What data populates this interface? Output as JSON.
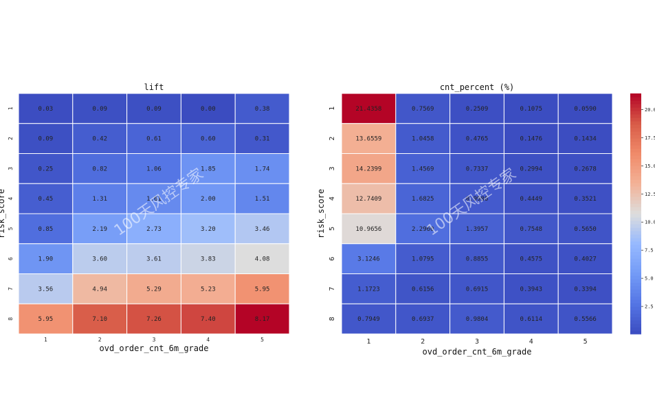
{
  "chart_data": [
    {
      "type": "heatmap",
      "title": "lift",
      "xlabel": "ovd_order_cnt_6m_grade",
      "ylabel": "risk_score",
      "x_categories": [
        "1",
        "2",
        "3",
        "4",
        "5"
      ],
      "y_categories": [
        "1",
        "2",
        "3",
        "4",
        "5",
        "6",
        "7",
        "8"
      ],
      "cell_labels": [
        [
          "0.03",
          "0.09",
          "0.09",
          "0.00",
          "0.38"
        ],
        [
          "0.09",
          "0.42",
          "0.61",
          "0.60",
          "0.31"
        ],
        [
          "0.25",
          "0.82",
          "1.06",
          "1.85",
          "1.74"
        ],
        [
          "0.45",
          "1.31",
          "1.61",
          "2.00",
          "1.51"
        ],
        [
          "0.85",
          "2.19",
          "2.73",
          "3.20",
          "3.46"
        ],
        [
          "1.90",
          "3.60",
          "3.61",
          "3.83",
          "4.08"
        ],
        [
          "3.56",
          "4.94",
          "5.29",
          "5.23",
          "5.95"
        ],
        [
          "5.95",
          "7.10",
          "7.26",
          "7.40",
          "8.17"
        ]
      ],
      "values": [
        [
          0.03,
          0.09,
          0.09,
          0.0,
          0.38
        ],
        [
          0.09,
          0.42,
          0.61,
          0.6,
          0.31
        ],
        [
          0.25,
          0.82,
          1.06,
          1.85,
          1.74
        ],
        [
          0.45,
          1.31,
          1.61,
          2.0,
          1.51
        ],
        [
          0.85,
          2.19,
          2.73,
          3.2,
          3.46
        ],
        [
          1.9,
          3.6,
          3.61,
          3.83,
          4.08
        ],
        [
          3.56,
          4.94,
          5.29,
          5.23,
          5.95
        ],
        [
          5.95,
          7.1,
          7.26,
          7.4,
          8.17
        ]
      ],
      "colormap": "coolwarm",
      "value_range": [
        0,
        8.17
      ]
    },
    {
      "type": "heatmap",
      "title": "cnt_percent (%)",
      "xlabel": "ovd_order_cnt_6m_grade",
      "ylabel": "risk_score",
      "x_categories": [
        "1",
        "2",
        "3",
        "4",
        "5"
      ],
      "y_categories": [
        "1",
        "2",
        "3",
        "4",
        "5",
        "6",
        "7",
        "8"
      ],
      "cell_labels": [
        [
          "21.4358",
          "0.7569",
          "0.2509",
          "0.1075",
          "0.0590"
        ],
        [
          "13.6559",
          "1.0458",
          "0.4765",
          "0.1476",
          "0.1434"
        ],
        [
          "14.2399",
          "1.4569",
          "0.7337",
          "0.2994",
          "0.2678"
        ],
        [
          "12.7409",
          "1.6825",
          "0.9986",
          "0.4449",
          "0.3521"
        ],
        [
          "10.9656",
          "2.2960",
          "1.3957",
          "0.7548",
          "0.5650"
        ],
        [
          "3.1246",
          "1.0795",
          "0.8855",
          "0.4575",
          "0.4027"
        ],
        [
          "1.1723",
          "0.6156",
          "0.6915",
          "0.3943",
          "0.3394"
        ],
        [
          "0.7949",
          "0.6937",
          "0.9804",
          "0.6114",
          "0.5566"
        ]
      ],
      "values": [
        [
          21.4358,
          0.7569,
          0.2509,
          0.1075,
          0.059
        ],
        [
          13.6559,
          1.0458,
          0.4765,
          0.1476,
          0.1434
        ],
        [
          14.2399,
          1.4569,
          0.7337,
          0.2994,
          0.2678
        ],
        [
          12.7409,
          1.6825,
          0.9986,
          0.4449,
          0.3521
        ],
        [
          10.9656,
          2.296,
          1.3957,
          0.7548,
          0.565
        ],
        [
          3.1246,
          1.0795,
          0.8855,
          0.4575,
          0.4027
        ],
        [
          1.1723,
          0.6156,
          0.6915,
          0.3943,
          0.3394
        ],
        [
          0.7949,
          0.6937,
          0.9804,
          0.6114,
          0.5566
        ]
      ],
      "colormap": "coolwarm",
      "value_range": [
        0.059,
        21.4358
      ],
      "colorbar_ticks": [
        "2.5",
        "5.0",
        "7.5",
        "10.0",
        "12.5",
        "15.0",
        "17.5",
        "20.0"
      ]
    }
  ],
  "watermark": "100天风控专家"
}
